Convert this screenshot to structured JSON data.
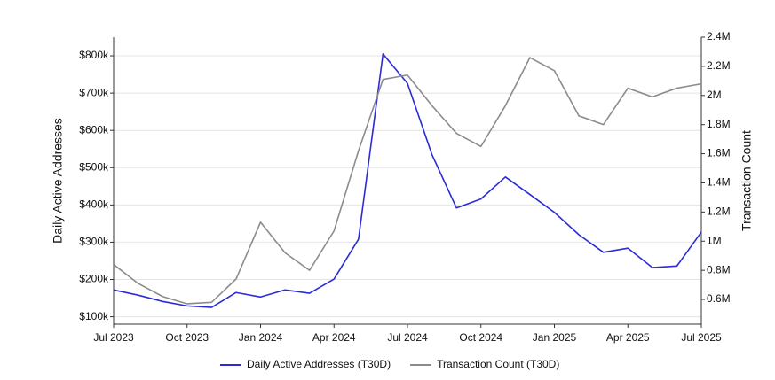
{
  "chart_data": {
    "type": "line",
    "ylabel": "Daily Active Addresses",
    "y2label": "Transaction Count",
    "x": [
      "2023-07",
      "2023-08",
      "2023-09",
      "2023-10",
      "2023-11",
      "2023-12",
      "2024-01",
      "2024-02",
      "2024-03",
      "2024-04",
      "2024-05",
      "2024-06",
      "2024-07",
      "2024-08",
      "2024-09",
      "2024-10",
      "2024-11",
      "2024-12",
      "2025-01",
      "2025-02",
      "2025-03",
      "2025-04",
      "2025-05",
      "2025-06",
      "2025-07"
    ],
    "xlim": [
      "2023-07",
      "2025-07"
    ],
    "xticks": [
      {
        "value": "2023-07",
        "label": "Jul 2023"
      },
      {
        "value": "2023-10",
        "label": "Oct 2023"
      },
      {
        "value": "2024-01",
        "label": "Jan 2024"
      },
      {
        "value": "2024-04",
        "label": "Apr 2024"
      },
      {
        "value": "2024-07",
        "label": "Jul 2024"
      },
      {
        "value": "2024-10",
        "label": "Oct 2024"
      },
      {
        "value": "2025-01",
        "label": "Jan 2025"
      },
      {
        "value": "2025-04",
        "label": "Apr 2025"
      },
      {
        "value": "2025-07",
        "label": "Jul 2025"
      }
    ],
    "ylim": [
      80000,
      850000
    ],
    "yticks": [
      {
        "value": 100000,
        "label": "$100k"
      },
      {
        "value": 200000,
        "label": "$200k"
      },
      {
        "value": 300000,
        "label": "$300k"
      },
      {
        "value": 400000,
        "label": "$400k"
      },
      {
        "value": 500000,
        "label": "$500k"
      },
      {
        "value": 600000,
        "label": "$600k"
      },
      {
        "value": 700000,
        "label": "$700k"
      },
      {
        "value": 800000,
        "label": "$800k"
      }
    ],
    "y2lim": [
      430000,
      2400000
    ],
    "y2ticks": [
      {
        "value": 600000,
        "label": "0.6M"
      },
      {
        "value": 800000,
        "label": "0.8M"
      },
      {
        "value": 1000000,
        "label": "1M"
      },
      {
        "value": 1200000,
        "label": "1.2M"
      },
      {
        "value": 1400000,
        "label": "1.4M"
      },
      {
        "value": 1600000,
        "label": "1.6M"
      },
      {
        "value": 1800000,
        "label": "1.8M"
      },
      {
        "value": 2000000,
        "label": "2M"
      },
      {
        "value": 2200000,
        "label": "2.2M"
      },
      {
        "value": 2400000,
        "label": "2.4M"
      }
    ],
    "grid": true,
    "legend": "bottom",
    "series": [
      {
        "name": "Daily Active Addresses (T30D)",
        "color": "#2b2bd8",
        "axis": "y",
        "values": [
          172000,
          158000,
          141000,
          129000,
          125000,
          165000,
          153000,
          172000,
          163000,
          201000,
          308000,
          805000,
          726000,
          535000,
          392000,
          416000,
          475000,
          428000,
          380000,
          320000,
          273000,
          284000,
          232000,
          236000,
          327000
        ]
      },
      {
        "name": "Transaction Count (T30D)",
        "color": "#8c8c8c",
        "axis": "y2",
        "values": [
          840000,
          710000,
          620000,
          570000,
          580000,
          740000,
          1130000,
          920000,
          800000,
          1070000,
          1620000,
          2110000,
          2140000,
          1930000,
          1740000,
          1650000,
          1930000,
          2260000,
          2170000,
          1860000,
          1800000,
          2050000,
          1990000,
          2050000,
          2080000
        ]
      }
    ]
  }
}
